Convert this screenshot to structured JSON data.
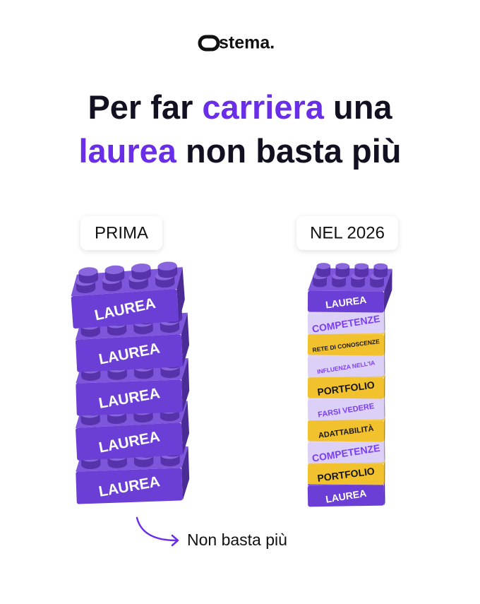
{
  "brand": "stema.",
  "title": {
    "line1": [
      {
        "text": "Per far ",
        "accent": false
      },
      {
        "text": "carriera",
        "accent": true
      },
      {
        "text": " una",
        "accent": false
      }
    ],
    "line2": [
      {
        "text": "laurea",
        "accent": true
      },
      {
        "text": " non basta più",
        "accent": false
      }
    ]
  },
  "columns": [
    {
      "label": "PRIMA",
      "bricks": [
        {
          "text": "LAUREA",
          "color": "#6b3fd6"
        },
        {
          "text": "LAUREA",
          "color": "#6b3fd6"
        },
        {
          "text": "LAUREA",
          "color": "#6b3fd6"
        },
        {
          "text": "LAUREA",
          "color": "#6b3fd6"
        },
        {
          "text": "LAUREA",
          "color": "#6b3fd6"
        }
      ]
    },
    {
      "label": "NEL 2026",
      "bricks": [
        {
          "text": "LAUREA",
          "color": "#6b3fd6"
        },
        {
          "text": "COMPETENZE",
          "color": "#dcd0f7"
        },
        {
          "text": "RETE DI CONOSCENZE",
          "color": "#f2c12e"
        },
        {
          "text": "INFLUENZA NELL'IA",
          "color": "#dcd0f7"
        },
        {
          "text": "PORTFOLIO",
          "color": "#f2c12e"
        },
        {
          "text": "FARSI VEDERE",
          "color": "#dcd0f7"
        },
        {
          "text": "ADATTABILITÀ",
          "color": "#f2c12e"
        },
        {
          "text": "COMPETENZE",
          "color": "#dcd0f7"
        },
        {
          "text": "PORTFOLIO",
          "color": "#f2c12e"
        },
        {
          "text": "LAUREA",
          "color": "#6b3fd6"
        }
      ]
    }
  ],
  "note": "Non basta più"
}
